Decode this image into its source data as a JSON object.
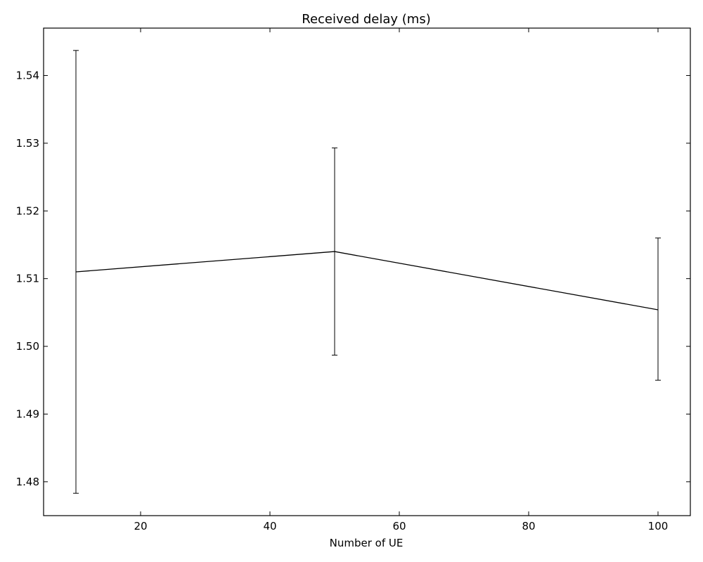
{
  "chart_data": {
    "type": "line",
    "title": "Received delay (ms)",
    "xlabel": "Number of UE",
    "ylabel": "",
    "xlim": [
      5,
      105
    ],
    "ylim": [
      1.475,
      1.547
    ],
    "xticks": [
      20,
      40,
      60,
      80,
      100
    ],
    "yticks": [
      1.48,
      1.49,
      1.5,
      1.51,
      1.52,
      1.53,
      1.54
    ],
    "xtick_labels": [
      "20",
      "40",
      "60",
      "80",
      "100"
    ],
    "ytick_labels": [
      "1.48",
      "1.49",
      "1.50",
      "1.51",
      "1.52",
      "1.53",
      "1.54"
    ],
    "grid": false,
    "series": [
      {
        "x": [
          10,
          50,
          100
        ],
        "y": [
          1.511,
          1.514,
          1.5054
        ],
        "err_low": [
          1.4783,
          1.4987,
          1.495
        ],
        "err_high": [
          1.5437,
          1.5293,
          1.516
        ],
        "color": "#000000"
      }
    ]
  }
}
